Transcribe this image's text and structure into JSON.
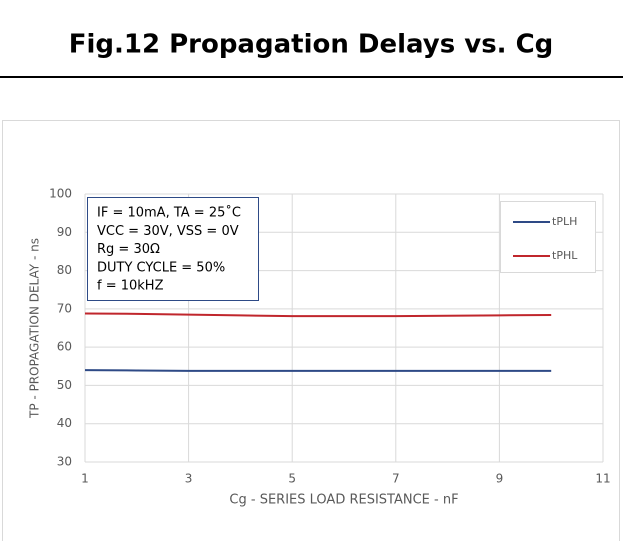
{
  "header": {
    "title": "Fig.12 Propagation Delays vs. Cg"
  },
  "chart_data": {
    "type": "line",
    "x": [
      1,
      2,
      3,
      4,
      5,
      6,
      7,
      8,
      9,
      10
    ],
    "series": [
      {
        "name": "tPLH",
        "color": "#2e4a86",
        "values": [
          54.0,
          53.9,
          53.8,
          53.8,
          53.8,
          53.8,
          53.8,
          53.8,
          53.8,
          53.8
        ]
      },
      {
        "name": "tPHL",
        "color": "#c0262c",
        "values": [
          68.8,
          68.7,
          68.5,
          68.3,
          68.1,
          68.1,
          68.1,
          68.2,
          68.3,
          68.4
        ]
      }
    ],
    "xlim": [
      1,
      11
    ],
    "xticks": [
      1,
      3,
      5,
      7,
      9,
      11
    ],
    "ylim": [
      30,
      100
    ],
    "yticks": [
      30,
      40,
      50,
      60,
      70,
      80,
      90,
      100
    ],
    "grid": true,
    "legend": "upper right",
    "xlabel": "Cg - SERIES LOAD RESISTANCE - nF",
    "ylabel": "TP - PROPAGATION DELAY - ns",
    "annotation": [
      "IF = 10mA, TA = 25˚C",
      "VCC = 30V, VSS = 0V",
      "Rg = 30Ω",
      "DUTY CYCLE = 50%",
      "f = 10kHZ"
    ]
  }
}
